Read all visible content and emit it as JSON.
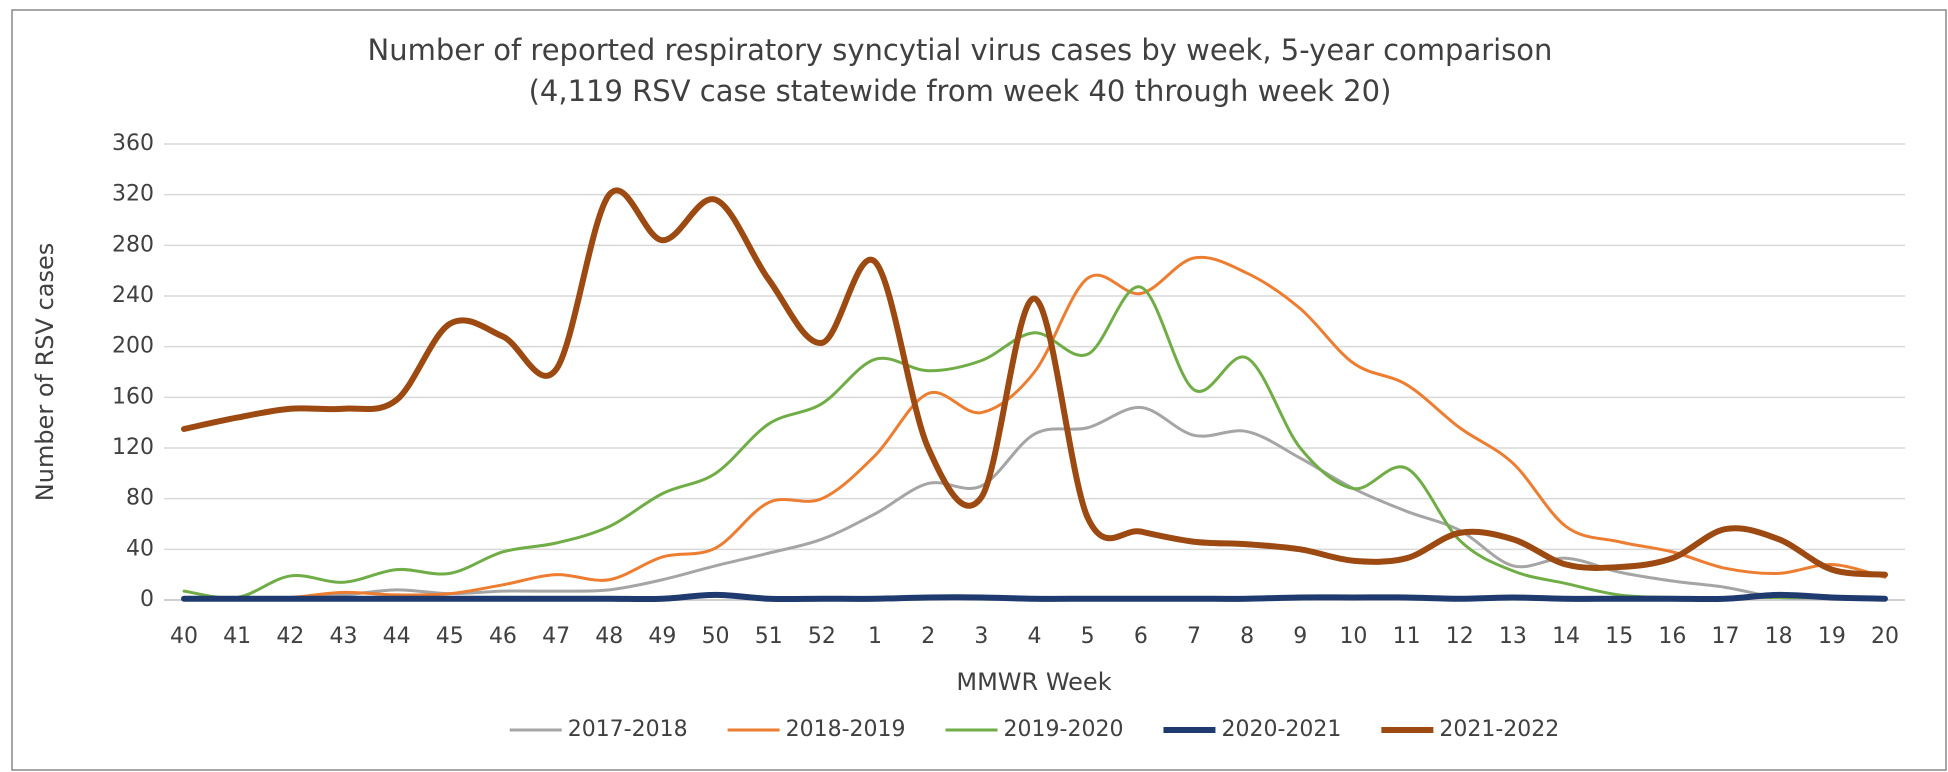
{
  "chart_data": {
    "type": "line",
    "title": "Number of reported respiratory syncytial virus cases by week, 5-year comparison",
    "subtitle": "(4,119 RSV case statewide from week 40 through week 20)",
    "x_label": "MMWR Week",
    "y_label": "Number of RSV cases",
    "categories": [
      "40",
      "41",
      "42",
      "43",
      "44",
      "45",
      "46",
      "47",
      "48",
      "49",
      "50",
      "51",
      "52",
      "1",
      "2",
      "3",
      "4",
      "5",
      "6",
      "7",
      "8",
      "9",
      "10",
      "11",
      "12",
      "13",
      "14",
      "15",
      "16",
      "17",
      "18",
      "19",
      "20"
    ],
    "ylim": [
      0,
      360
    ],
    "yticks": [
      0,
      40,
      80,
      120,
      160,
      200,
      240,
      280,
      320,
      360
    ],
    "grid": true,
    "legend": "bottom",
    "series": [
      {
        "name": "2017-2018",
        "color": "#a5a5a5",
        "line_width": 3,
        "values": [
          2,
          2,
          2,
          4,
          8,
          5,
          7,
          7,
          8,
          16,
          27,
          37,
          48,
          68,
          92,
          90,
          131,
          136,
          152,
          130,
          133,
          112,
          88,
          70,
          55,
          27,
          33,
          22,
          15,
          10,
          2,
          2,
          2
        ]
      },
      {
        "name": "2018-2019",
        "color": "#ed7d31",
        "line_width": 3,
        "values": [
          2,
          2,
          2,
          6,
          4,
          5,
          12,
          20,
          16,
          34,
          41,
          77,
          80,
          114,
          163,
          148,
          180,
          254,
          242,
          270,
          258,
          230,
          187,
          170,
          136,
          108,
          58,
          46,
          38,
          25,
          21,
          28,
          18
        ]
      },
      {
        "name": "2019-2020",
        "color": "#70ad47",
        "line_width": 3,
        "values": [
          7,
          2,
          19,
          14,
          24,
          21,
          38,
          45,
          58,
          84,
          100,
          139,
          155,
          190,
          181,
          189,
          211,
          194,
          247,
          166,
          191,
          120,
          88,
          104,
          47,
          23,
          13,
          4,
          2,
          2,
          2,
          2,
          2
        ]
      },
      {
        "name": "2020-2021",
        "color": "#1f3a6e",
        "line_width": 6,
        "values": [
          1,
          1,
          1,
          1,
          1,
          1,
          1,
          1,
          1,
          1,
          4,
          1,
          1,
          1,
          2,
          2,
          1,
          1,
          1,
          1,
          1,
          2,
          2,
          2,
          1,
          2,
          1,
          1,
          1,
          1,
          4,
          2,
          1
        ]
      },
      {
        "name": "2021-2022",
        "color": "#9c4a12",
        "line_width": 6,
        "values": [
          135,
          144,
          151,
          151,
          158,
          218,
          208,
          182,
          320,
          284,
          316,
          253,
          203,
          267,
          120,
          81,
          238,
          65,
          54,
          46,
          44,
          40,
          31,
          33,
          53,
          48,
          28,
          26,
          33,
          56,
          48,
          24,
          20
        ]
      }
    ]
  }
}
